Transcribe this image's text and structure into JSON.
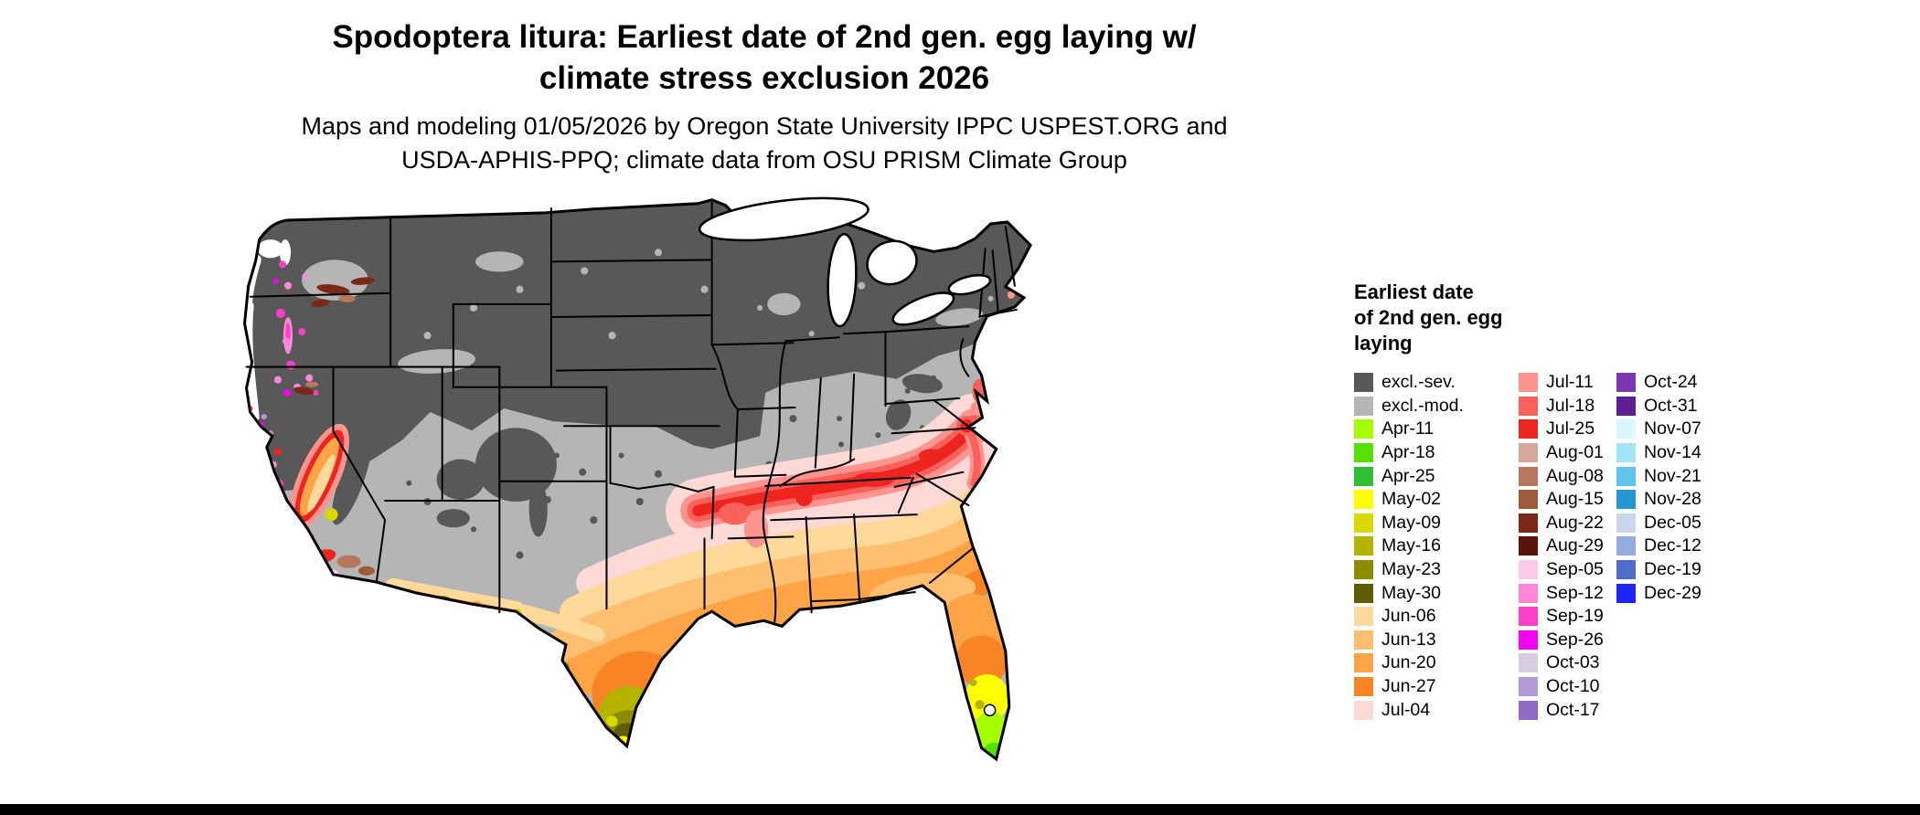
{
  "title": {
    "line1": "Spodoptera litura: Earliest date of 2nd gen. egg laying w/",
    "line2": "climate stress exclusion 2026"
  },
  "subtitle": {
    "line1": "Maps and modeling 01/05/2026 by Oregon State University IPPC USPEST.ORG and",
    "line2": "USDA-APHIS-PPQ; climate data from OSU PRISM Climate Group"
  },
  "legend": {
    "title_lines": [
      "Earliest date",
      "of 2nd gen. egg",
      "laying"
    ],
    "columns": [
      [
        {
          "label": "excl.-sev.",
          "color": "#585858"
        },
        {
          "label": "excl.-mod.",
          "color": "#b5b5b5"
        },
        {
          "label": "Apr-11",
          "color": "#a6ff00"
        },
        {
          "label": "Apr-18",
          "color": "#54e000"
        },
        {
          "label": "Apr-25",
          "color": "#30bf30"
        },
        {
          "label": "May-02",
          "color": "#ffff00"
        },
        {
          "label": "May-09",
          "color": "#d9d900"
        },
        {
          "label": "May-16",
          "color": "#b3b300"
        },
        {
          "label": "May-23",
          "color": "#8c8c00"
        },
        {
          "label": "May-30",
          "color": "#5e5e00"
        },
        {
          "label": "Jun-06",
          "color": "#ffd999"
        },
        {
          "label": "Jun-13",
          "color": "#ffbf70"
        },
        {
          "label": "Jun-20",
          "color": "#ffa347"
        },
        {
          "label": "Jun-27",
          "color": "#f98426"
        },
        {
          "label": "Jul-04",
          "color": "#ffd9d6"
        }
      ],
      [
        {
          "label": "Jul-11",
          "color": "#ff938e"
        },
        {
          "label": "Jul-18",
          "color": "#f9615a"
        },
        {
          "label": "Jul-25",
          "color": "#ee2420"
        },
        {
          "label": "Aug-01",
          "color": "#d6a89c"
        },
        {
          "label": "Aug-08",
          "color": "#b7775c"
        },
        {
          "label": "Aug-15",
          "color": "#9c5c3a"
        },
        {
          "label": "Aug-22",
          "color": "#7c2818"
        },
        {
          "label": "Aug-29",
          "color": "#581408"
        },
        {
          "label": "Sep-05",
          "color": "#ffc8e8"
        },
        {
          "label": "Sep-12",
          "color": "#ff86d8"
        },
        {
          "label": "Sep-19",
          "color": "#ff3ec8"
        },
        {
          "label": "Sep-26",
          "color": "#f402f4"
        },
        {
          "label": "Oct-03",
          "color": "#d6cee2"
        },
        {
          "label": "Oct-10",
          "color": "#b39cd6"
        },
        {
          "label": "Oct-17",
          "color": "#9168c4"
        }
      ],
      [
        {
          "label": "Oct-24",
          "color": "#7a36ae"
        },
        {
          "label": "Oct-31",
          "color": "#5c1e92"
        },
        {
          "label": "Nov-07",
          "color": "#daf6ff"
        },
        {
          "label": "Nov-14",
          "color": "#a2e5f8"
        },
        {
          "label": "Nov-21",
          "color": "#60c4ea"
        },
        {
          "label": "Nov-28",
          "color": "#2696d0"
        },
        {
          "label": "Dec-05",
          "color": "#ccd7ec"
        },
        {
          "label": "Dec-12",
          "color": "#94acdd"
        },
        {
          "label": "Dec-19",
          "color": "#4f6cc8"
        },
        {
          "label": "Dec-29",
          "color": "#1c24f6"
        }
      ]
    ]
  }
}
